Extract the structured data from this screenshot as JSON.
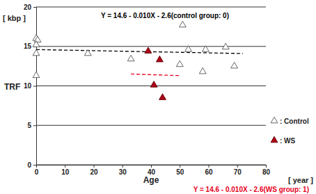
{
  "chart_data": {
    "type": "scatter",
    "x_label": "Age",
    "x_units": "[ year ]",
    "y_label": "TRF",
    "y_units": "[ kbp ]",
    "xlim": [
      0,
      80
    ],
    "xticks": [
      0,
      10,
      20,
      30,
      40,
      50,
      60,
      70,
      80
    ],
    "ylim": [
      0,
      20
    ],
    "yticks": [
      0,
      5,
      10,
      15,
      20
    ],
    "grid": true,
    "legend": "right",
    "annotations": [
      {
        "text": "Y = 14.6 - 0.010X - 2.6(control group: 0)",
        "color": "#000000"
      },
      {
        "text": "Y = 14.6 - 0.010X - 2.6(WS group: 1)",
        "color": "#e8001c"
      }
    ],
    "series": [
      {
        "name": ": Control",
        "type": "scatter",
        "marker": "triangle-open",
        "color": "#555555",
        "x": [
          0,
          0.5,
          0,
          0,
          0,
          18,
          33,
          50,
          51,
          53,
          58,
          59,
          66,
          69
        ],
        "values": [
          16.0,
          15.8,
          15.2,
          14.1,
          11.3,
          14.1,
          13.4,
          12.7,
          17.7,
          14.6,
          11.8,
          14.6,
          14.9,
          12.5
        ]
      },
      {
        "name": ": WS",
        "type": "scatter",
        "marker": "triangle-filled",
        "color": "#b0001a",
        "x": [
          39,
          43,
          41,
          44
        ],
        "values": [
          14.4,
          13.3,
          10.1,
          8.5
        ]
      },
      {
        "type": "line",
        "line_style": "dashed",
        "color": "#000000",
        "x": [
          0,
          72
        ],
        "values": [
          14.6,
          14.1
        ]
      },
      {
        "type": "line",
        "line_style": "dashed",
        "color": "#e8001c",
        "x": [
          33,
          50
        ],
        "values": [
          11.5,
          11.3
        ]
      }
    ]
  }
}
